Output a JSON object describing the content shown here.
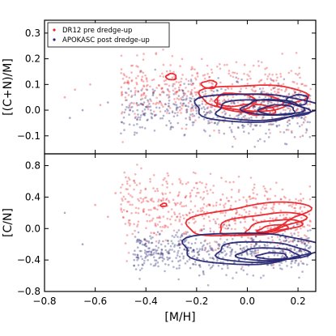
{
  "chart_data": [
    {
      "type": "scatter",
      "panel": "top",
      "ylabel": "[(C+N)/M]",
      "xlabel": "",
      "xlim": [
        -0.8,
        0.27
      ],
      "ylim": [
        -0.17,
        0.35
      ],
      "yticks": [
        -0.1,
        0.0,
        0.1,
        0.2,
        0.3
      ],
      "ytick_labels": [
        "−0.1",
        "0.0",
        "0.1",
        "0.2",
        "0.3"
      ],
      "legend": {
        "placement": "top-left",
        "entries": [
          "DR12 pre dredge-up",
          "APOKASC post dredge-up"
        ]
      },
      "series": [
        {
          "name": "DR12 pre dredge-up",
          "color": "#e8252b",
          "scatter": {
            "x_range": [
              -0.5,
              0.25
            ],
            "y_center": 0.06,
            "y_spread": 0.06,
            "count": 520,
            "sparse_x": [
              -0.68,
              -0.72,
              -0.62,
              -0.58
            ],
            "sparse_y": [
              0.08,
              0.05,
              0.1,
              0.02
            ]
          },
          "contours": [
            {
              "cx": 0.02,
              "cy": 0.05,
              "rx": 0.21,
              "ry": 0.05
            },
            {
              "cx": 0.0,
              "cy": 0.03,
              "rx": 0.13,
              "ry": 0.035
            },
            {
              "cx": -0.05,
              "cy": 0.04,
              "rx": 0.08,
              "ry": 0.025
            },
            {
              "cx": 0.05,
              "cy": 0.0,
              "rx": 0.06,
              "ry": 0.02
            },
            {
              "cx": -0.3,
              "cy": 0.13,
              "rx": 0.02,
              "ry": 0.012
            },
            {
              "cx": -0.15,
              "cy": 0.1,
              "rx": 0.03,
              "ry": 0.015
            }
          ]
        },
        {
          "name": "APOKASC post dredge-up",
          "color": "#262673",
          "scatter": {
            "x_range": [
              -0.5,
              0.25
            ],
            "y_center": 0.0,
            "y_spread": 0.05,
            "count": 480,
            "sparse_x": [
              -0.65,
              -0.7,
              -0.55
            ],
            "sparse_y": [
              0.0,
              -0.03,
              0.03
            ]
          },
          "contours": [
            {
              "cx": 0.02,
              "cy": 0.01,
              "rx": 0.24,
              "ry": 0.055
            },
            {
              "cx": 0.05,
              "cy": 0.0,
              "rx": 0.18,
              "ry": 0.04
            },
            {
              "cx": 0.1,
              "cy": 0.01,
              "rx": 0.12,
              "ry": 0.03
            },
            {
              "cx": 0.12,
              "cy": 0.0,
              "rx": 0.07,
              "ry": 0.02
            },
            {
              "cx": 0.2,
              "cy": 0.04,
              "rx": 0.04,
              "ry": 0.02
            }
          ]
        }
      ]
    },
    {
      "type": "scatter",
      "panel": "bottom",
      "ylabel": "[C/N]",
      "xlabel": "[M/H]",
      "xlim": [
        -0.8,
        0.27
      ],
      "ylim": [
        -0.8,
        0.95
      ],
      "xticks": [
        -0.8,
        -0.6,
        -0.4,
        -0.2,
        0.0,
        0.2
      ],
      "xtick_labels": [
        "−0.8",
        "−0.6",
        "−0.4",
        "−0.2",
        "0.0",
        "0.2"
      ],
      "yticks": [
        -0.8,
        -0.4,
        0.0,
        0.4,
        0.8
      ],
      "ytick_labels": [
        "−0.8",
        "−0.4",
        "0.0",
        "0.4",
        "0.8"
      ],
      "series": [
        {
          "name": "DR12 pre dredge-up",
          "color": "#e8252b",
          "scatter": {
            "x_range": [
              -0.5,
              0.25
            ],
            "y_center": 0.15,
            "y_spread": 0.22,
            "count": 560,
            "sparse_x": [
              -0.6,
              -0.55,
              -0.52
            ],
            "sparse_y": [
              0.3,
              0.15,
              0.45
            ]
          },
          "contours": [
            {
              "cx": 0.0,
              "cy": 0.12,
              "rx": 0.24,
              "ry": 0.18
            },
            {
              "cx": 0.05,
              "cy": 0.06,
              "rx": 0.17,
              "ry": 0.12
            },
            {
              "cx": 0.1,
              "cy": 0.02,
              "rx": 0.11,
              "ry": 0.08
            },
            {
              "cx": 0.1,
              "cy": 0.0,
              "rx": 0.06,
              "ry": 0.04
            },
            {
              "cx": -0.33,
              "cy": 0.3,
              "rx": 0.012,
              "ry": 0.02
            }
          ]
        },
        {
          "name": "APOKASC post dredge-up",
          "color": "#262673",
          "scatter": {
            "x_range": [
              -0.45,
              0.25
            ],
            "y_center": -0.3,
            "y_spread": 0.14,
            "count": 560,
            "sparse_x": [
              -0.72,
              -0.65
            ],
            "sparse_y": [
              0.2,
              -0.2
            ]
          },
          "contours": [
            {
              "cx": 0.0,
              "cy": -0.25,
              "rx": 0.27,
              "ry": 0.2
            },
            {
              "cx": 0.05,
              "cy": -0.3,
              "rx": 0.18,
              "ry": 0.13
            },
            {
              "cx": 0.08,
              "cy": -0.33,
              "rx": 0.12,
              "ry": 0.08
            },
            {
              "cx": 0.1,
              "cy": -0.35,
              "rx": 0.06,
              "ry": 0.04
            }
          ]
        }
      ]
    }
  ]
}
